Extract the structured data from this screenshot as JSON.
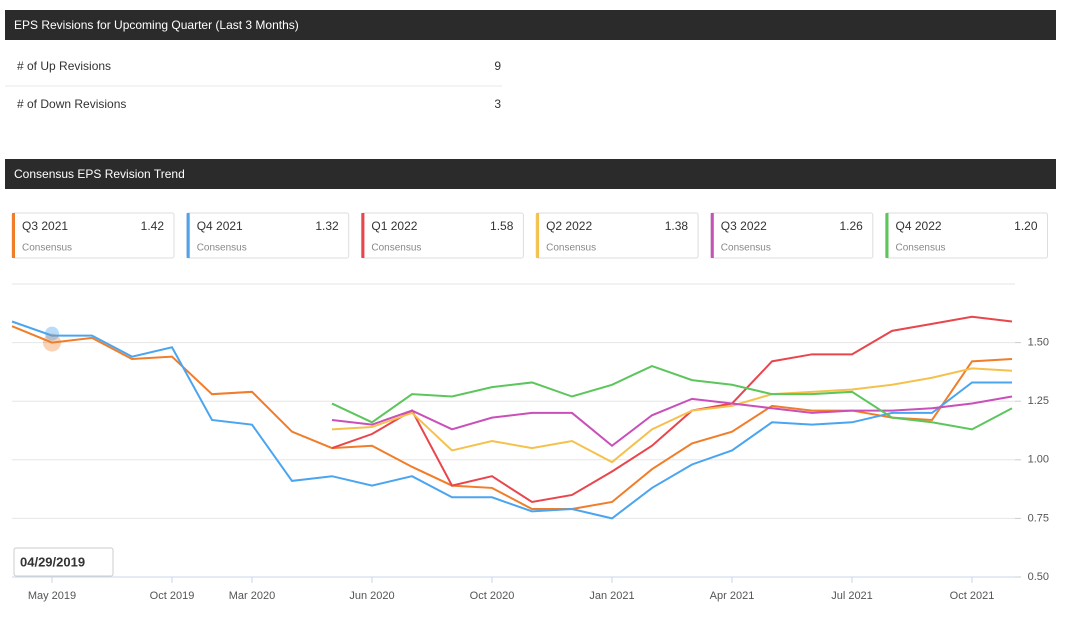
{
  "revisions_section": {
    "title": "EPS Revisions for Upcoming Quarter (Last 3 Months)",
    "rows": [
      [
        "# of Up Revisions",
        "9"
      ],
      [
        "# of Down Revisions",
        "3"
      ]
    ]
  },
  "trend_section": {
    "title": "Consensus EPS Revision Trend"
  },
  "chart_data": {
    "type": "line",
    "card_caption": "Consensus",
    "tooltip": "04/29/2019",
    "categories": [
      null,
      "May 2019",
      null,
      null,
      "Oct 2019",
      null,
      "Mar 2020",
      null,
      null,
      "Jun 2020",
      null,
      null,
      "Oct 2020",
      null,
      null,
      "Jan 2021",
      null,
      null,
      "Apr 2021",
      null,
      null,
      "Jul 2021",
      null,
      null,
      "Oct 2021",
      null
    ],
    "ylim": [
      0.5,
      1.75
    ],
    "yticks": [
      {
        "value": 0.5,
        "label": "0.50"
      },
      {
        "value": 0.75,
        "label": "0.75"
      },
      {
        "value": 1,
        "label": "1.00"
      },
      {
        "value": 1.25,
        "label": "1.25"
      },
      {
        "value": 1.5,
        "label": "1.50"
      }
    ],
    "grid": true,
    "series": [
      {
        "name": "Q3 2021",
        "consensus": "1.42",
        "color": "#f07d2a",
        "values": [
          1.57,
          1.5,
          1.52,
          1.43,
          1.44,
          1.28,
          1.29,
          1.12,
          1.05,
          1.06,
          0.97,
          0.89,
          0.88,
          0.79,
          0.79,
          0.82,
          0.96,
          1.07,
          1.12,
          1.23,
          1.21,
          1.21,
          1.18,
          1.17,
          1.42,
          1.43
        ]
      },
      {
        "name": "Q4 2021",
        "consensus": "1.32",
        "color": "#4aa5f0",
        "values": [
          1.59,
          1.53,
          1.53,
          1.44,
          1.48,
          1.17,
          1.15,
          0.91,
          0.93,
          0.89,
          0.93,
          0.84,
          0.84,
          0.78,
          0.79,
          0.75,
          0.88,
          0.98,
          1.04,
          1.16,
          1.15,
          1.16,
          1.2,
          1.2,
          1.33,
          1.33
        ]
      },
      {
        "name": "Q1 2022",
        "consensus": "1.58",
        "color": "#e8464c",
        "values": [
          null,
          null,
          null,
          null,
          null,
          null,
          null,
          null,
          1.05,
          1.11,
          1.21,
          0.89,
          0.93,
          0.82,
          0.85,
          0.95,
          1.06,
          1.21,
          1.24,
          1.42,
          1.45,
          1.45,
          1.55,
          1.58,
          1.61,
          1.59
        ]
      },
      {
        "name": "Q2 2022",
        "consensus": "1.38",
        "color": "#f5c14c",
        "values": [
          null,
          null,
          null,
          null,
          null,
          null,
          null,
          null,
          1.13,
          1.14,
          1.2,
          1.04,
          1.08,
          1.05,
          1.08,
          0.99,
          1.13,
          1.21,
          1.23,
          1.28,
          1.29,
          1.3,
          1.32,
          1.35,
          1.39,
          1.38
        ]
      },
      {
        "name": "Q3 2022",
        "consensus": "1.26",
        "color": "#c94fb9",
        "values": [
          null,
          null,
          null,
          null,
          null,
          null,
          null,
          null,
          1.17,
          1.15,
          1.21,
          1.13,
          1.18,
          1.2,
          1.2,
          1.06,
          1.19,
          1.26,
          1.24,
          1.22,
          1.2,
          1.21,
          1.21,
          1.22,
          1.24,
          1.27
        ]
      },
      {
        "name": "Q4 2022",
        "consensus": "1.20",
        "color": "#5cc65c",
        "values": [
          null,
          null,
          null,
          null,
          null,
          null,
          null,
          null,
          1.24,
          1.16,
          1.28,
          1.27,
          1.31,
          1.33,
          1.27,
          1.32,
          1.4,
          1.34,
          1.32,
          1.28,
          1.28,
          1.29,
          1.18,
          1.16,
          1.13,
          1.22
        ]
      }
    ]
  }
}
